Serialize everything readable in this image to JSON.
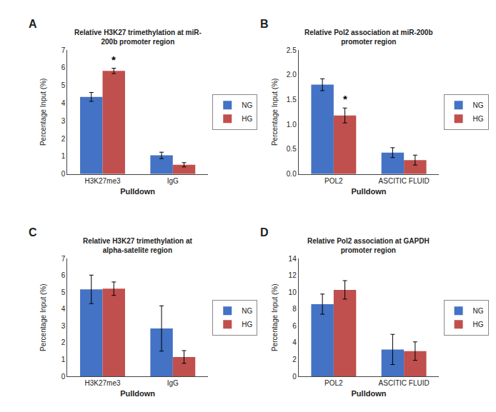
{
  "chart_data": [
    {
      "type": "bar",
      "panel": "A",
      "title": "Relative H3K27 trimethylation at miR-\n200b promoter region",
      "x_label": "Pulldown",
      "y_label": "Percentage Input (%)",
      "categories": [
        "H3K27me3",
        "IgG"
      ],
      "series": [
        {
          "name": "NG",
          "color": "#4472C4",
          "values": [
            4.35,
            1.05
          ],
          "errors": [
            0.25,
            0.18
          ]
        },
        {
          "name": "HG",
          "color": "#C0504D",
          "values": [
            5.82,
            0.52
          ],
          "errors": [
            0.15,
            0.12
          ]
        }
      ],
      "ylim": [
        0,
        7
      ],
      "yticks": [
        0,
        1,
        2,
        3,
        4,
        5,
        6,
        7
      ],
      "grid": false,
      "legend": "right",
      "annotations": [
        {
          "text": "*",
          "category": "H3K27me3",
          "series": "HG"
        }
      ]
    },
    {
      "type": "bar",
      "panel": "B",
      "title": "Relative Pol2 association at miR-200b\npromoter region",
      "x_label": "Pulldown",
      "y_label": "Percentage Input (%)",
      "categories": [
        "POL2",
        "ASCITIC FLUID"
      ],
      "series": [
        {
          "name": "NG",
          "color": "#4472C4",
          "values": [
            1.8,
            0.43
          ],
          "errors": [
            0.12,
            0.1
          ]
        },
        {
          "name": "HG",
          "color": "#C0504D",
          "values": [
            1.18,
            0.28
          ],
          "errors": [
            0.15,
            0.1
          ]
        }
      ],
      "ylim": [
        0,
        2.5
      ],
      "yticks": [
        {
          "value": 0,
          "label": "0.0"
        },
        0.5,
        {
          "value": 1.0,
          "label": "1.0"
        },
        1.5,
        {
          "value": 2.0,
          "label": "2.0"
        },
        2.5
      ],
      "grid": false,
      "legend": "right",
      "annotations": [
        {
          "text": "*",
          "category": "POL2",
          "series": "HG"
        }
      ]
    },
    {
      "type": "bar",
      "panel": "C",
      "title": "Relative H3K27 trimethylation at\nalpha-satelite region",
      "x_label": "Pulldown",
      "y_label": "Percentage Input (%)",
      "categories": [
        "H3K27me3",
        "IgG"
      ],
      "series": [
        {
          "name": "NG",
          "color": "#4472C4",
          "values": [
            5.18,
            2.85
          ],
          "errors": [
            0.85,
            1.35
          ]
        },
        {
          "name": "HG",
          "color": "#C0504D",
          "values": [
            5.22,
            1.15
          ],
          "errors": [
            0.4,
            0.38
          ]
        }
      ],
      "ylim": [
        0,
        7
      ],
      "yticks": [
        0,
        1,
        2,
        3,
        4,
        5,
        6,
        7
      ],
      "grid": false,
      "legend": "right"
    },
    {
      "type": "bar",
      "panel": "D",
      "title": "Relative Pol2 association at GAPDH\npromoter region",
      "x_label": "Pulldown",
      "y_label": "Percentage Input (%)",
      "categories": [
        "POL2",
        "ASCITIC FLUID"
      ],
      "series": [
        {
          "name": "NG",
          "color": "#4472C4",
          "values": [
            8.6,
            3.2
          ],
          "errors": [
            1.2,
            1.8
          ]
        },
        {
          "name": "HG",
          "color": "#C0504D",
          "values": [
            10.3,
            3.0
          ],
          "errors": [
            1.1,
            1.1
          ]
        }
      ],
      "ylim": [
        0,
        14
      ],
      "yticks": [
        0,
        2,
        4,
        6,
        8,
        10,
        12,
        14
      ],
      "grid": false,
      "legend": "right"
    }
  ]
}
